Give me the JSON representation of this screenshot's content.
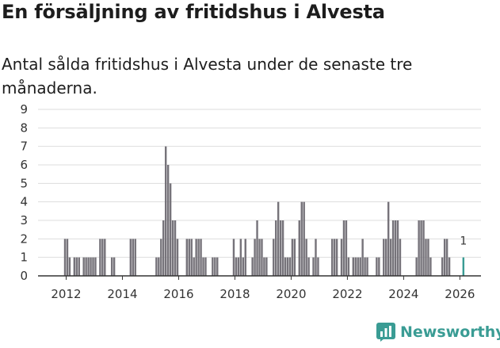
{
  "title": "En försäljning av fritidshus i Alvesta",
  "subtitle": "Antal sålda fritidshus i Alvesta under de senaste tre månaderna.",
  "brand": {
    "name": "Newsworthy",
    "color": "#3a9c94"
  },
  "colors": {
    "bar": "#76737a",
    "highlight": "#3a9c94",
    "grid": "#dddddd",
    "axis": "#333333"
  },
  "chart_data": {
    "type": "bar",
    "title": "",
    "xlabel": "",
    "ylabel": "",
    "ylim": [
      0,
      9
    ],
    "y_ticks": [
      "0",
      "1",
      "2",
      "3",
      "4",
      "5",
      "6",
      "7",
      "8",
      "9"
    ],
    "x_ticks": [
      "2012",
      "2014",
      "2016",
      "2018",
      "2020",
      "2022",
      "2024",
      "2026"
    ],
    "x_range": [
      "2011-01",
      "2026-10"
    ],
    "grid": true,
    "highlight_label": "1",
    "series": [
      {
        "values": [
          {
            "month": "2011-12",
            "value": 2
          },
          {
            "month": "2012-01",
            "value": 2
          },
          {
            "month": "2012-02",
            "value": 1
          },
          {
            "month": "2012-04",
            "value": 1
          },
          {
            "month": "2012-05",
            "value": 1
          },
          {
            "month": "2012-06",
            "value": 1
          },
          {
            "month": "2012-08",
            "value": 1
          },
          {
            "month": "2012-09",
            "value": 1
          },
          {
            "month": "2012-10",
            "value": 1
          },
          {
            "month": "2012-11",
            "value": 1
          },
          {
            "month": "2012-12",
            "value": 1
          },
          {
            "month": "2013-01",
            "value": 1
          },
          {
            "month": "2013-03",
            "value": 2
          },
          {
            "month": "2013-04",
            "value": 2
          },
          {
            "month": "2013-05",
            "value": 2
          },
          {
            "month": "2013-08",
            "value": 1
          },
          {
            "month": "2013-09",
            "value": 1
          },
          {
            "month": "2014-04",
            "value": 2
          },
          {
            "month": "2014-05",
            "value": 2
          },
          {
            "month": "2014-06",
            "value": 2
          },
          {
            "month": "2015-03",
            "value": 1
          },
          {
            "month": "2015-04",
            "value": 1
          },
          {
            "month": "2015-05",
            "value": 2
          },
          {
            "month": "2015-06",
            "value": 3
          },
          {
            "month": "2015-07",
            "value": 7
          },
          {
            "month": "2015-08",
            "value": 6
          },
          {
            "month": "2015-09",
            "value": 5
          },
          {
            "month": "2015-10",
            "value": 3
          },
          {
            "month": "2015-11",
            "value": 3
          },
          {
            "month": "2015-12",
            "value": 2
          },
          {
            "month": "2016-04",
            "value": 2
          },
          {
            "month": "2016-05",
            "value": 2
          },
          {
            "month": "2016-06",
            "value": 2
          },
          {
            "month": "2016-07",
            "value": 1
          },
          {
            "month": "2016-08",
            "value": 2
          },
          {
            "month": "2016-09",
            "value": 2
          },
          {
            "month": "2016-10",
            "value": 2
          },
          {
            "month": "2016-11",
            "value": 1
          },
          {
            "month": "2016-12",
            "value": 1
          },
          {
            "month": "2017-03",
            "value": 1
          },
          {
            "month": "2017-04",
            "value": 1
          },
          {
            "month": "2017-05",
            "value": 1
          },
          {
            "month": "2017-12",
            "value": 2
          },
          {
            "month": "2018-01",
            "value": 1
          },
          {
            "month": "2018-02",
            "value": 1
          },
          {
            "month": "2018-03",
            "value": 2
          },
          {
            "month": "2018-04",
            "value": 1
          },
          {
            "month": "2018-05",
            "value": 2
          },
          {
            "month": "2018-08",
            "value": 1
          },
          {
            "month": "2018-09",
            "value": 2
          },
          {
            "month": "2018-10",
            "value": 3
          },
          {
            "month": "2018-11",
            "value": 2
          },
          {
            "month": "2018-12",
            "value": 2
          },
          {
            "month": "2019-01",
            "value": 1
          },
          {
            "month": "2019-02",
            "value": 1
          },
          {
            "month": "2019-05",
            "value": 2
          },
          {
            "month": "2019-06",
            "value": 3
          },
          {
            "month": "2019-07",
            "value": 4
          },
          {
            "month": "2019-08",
            "value": 3
          },
          {
            "month": "2019-09",
            "value": 3
          },
          {
            "month": "2019-10",
            "value": 1
          },
          {
            "month": "2019-11",
            "value": 1
          },
          {
            "month": "2019-12",
            "value": 1
          },
          {
            "month": "2020-01",
            "value": 2
          },
          {
            "month": "2020-02",
            "value": 2
          },
          {
            "month": "2020-04",
            "value": 3
          },
          {
            "month": "2020-05",
            "value": 4
          },
          {
            "month": "2020-06",
            "value": 4
          },
          {
            "month": "2020-07",
            "value": 2
          },
          {
            "month": "2020-08",
            "value": 1
          },
          {
            "month": "2020-10",
            "value": 1
          },
          {
            "month": "2020-11",
            "value": 2
          },
          {
            "month": "2020-12",
            "value": 1
          },
          {
            "month": "2021-06",
            "value": 2
          },
          {
            "month": "2021-07",
            "value": 2
          },
          {
            "month": "2021-08",
            "value": 2
          },
          {
            "month": "2021-10",
            "value": 2
          },
          {
            "month": "2021-11",
            "value": 3
          },
          {
            "month": "2021-12",
            "value": 3
          },
          {
            "month": "2022-01",
            "value": 1
          },
          {
            "month": "2022-03",
            "value": 1
          },
          {
            "month": "2022-04",
            "value": 1
          },
          {
            "month": "2022-05",
            "value": 1
          },
          {
            "month": "2022-06",
            "value": 1
          },
          {
            "month": "2022-07",
            "value": 2
          },
          {
            "month": "2022-08",
            "value": 1
          },
          {
            "month": "2022-09",
            "value": 1
          },
          {
            "month": "2023-01",
            "value": 1
          },
          {
            "month": "2023-02",
            "value": 1
          },
          {
            "month": "2023-04",
            "value": 2
          },
          {
            "month": "2023-05",
            "value": 2
          },
          {
            "month": "2023-06",
            "value": 4
          },
          {
            "month": "2023-07",
            "value": 2
          },
          {
            "month": "2023-08",
            "value": 3
          },
          {
            "month": "2023-09",
            "value": 3
          },
          {
            "month": "2023-10",
            "value": 3
          },
          {
            "month": "2023-11",
            "value": 2
          },
          {
            "month": "2024-06",
            "value": 1
          },
          {
            "month": "2024-07",
            "value": 3
          },
          {
            "month": "2024-08",
            "value": 3
          },
          {
            "month": "2024-09",
            "value": 3
          },
          {
            "month": "2024-10",
            "value": 2
          },
          {
            "month": "2024-11",
            "value": 2
          },
          {
            "month": "2024-12",
            "value": 1
          },
          {
            "month": "2025-05",
            "value": 1
          },
          {
            "month": "2025-06",
            "value": 2
          },
          {
            "month": "2025-07",
            "value": 2
          },
          {
            "month": "2025-08",
            "value": 1
          },
          {
            "month": "2026-02",
            "value": 1,
            "highlight": true
          }
        ]
      }
    ]
  }
}
